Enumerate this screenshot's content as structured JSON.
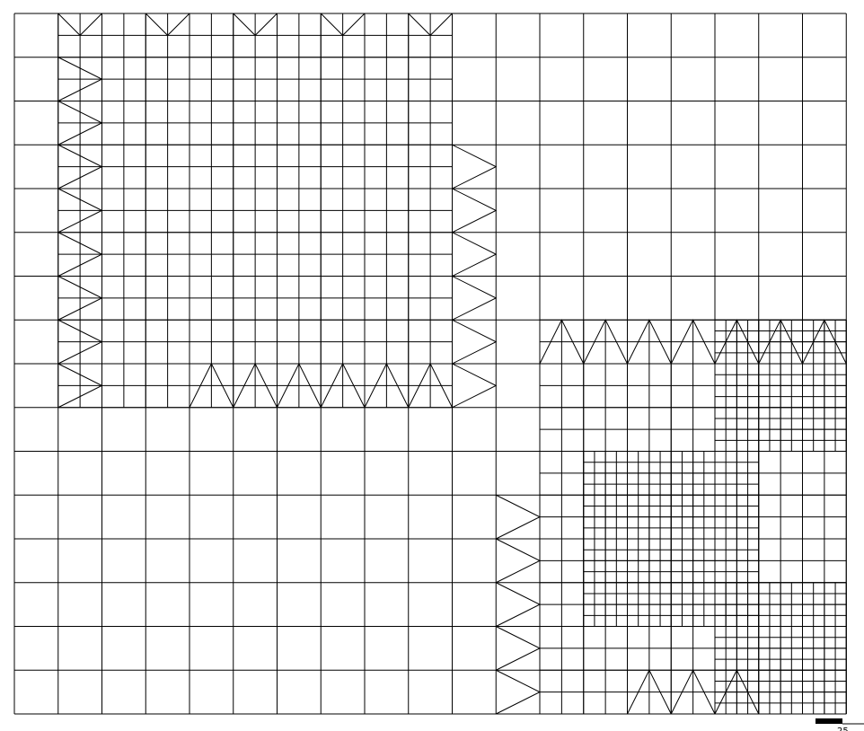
{
  "diagram": {
    "type": "adaptive-refined-mesh",
    "grid": {
      "columns": 19,
      "rows": 16
    },
    "colors": {
      "line": "#000000",
      "background": "#ffffff"
    },
    "refined_blocks": [
      {
        "name": "upper-left-region",
        "cols": [
          1,
          10
        ],
        "rows": [
          0,
          9
        ],
        "level": 2
      },
      {
        "name": "lower-right-diagonal",
        "cols": [
          12,
          19
        ],
        "rows": [
          7,
          16
        ],
        "level": 2
      },
      {
        "name": "fine-band-upper",
        "cols": [
          16,
          19
        ],
        "rows": [
          7,
          10
        ],
        "level": 3
      },
      {
        "name": "fine-band-middle",
        "cols": [
          13,
          17
        ],
        "rows": [
          10,
          14
        ],
        "level": 3
      },
      {
        "name": "fine-band-lower",
        "cols": [
          16,
          19
        ],
        "rows": [
          13,
          16
        ],
        "level": 3
      }
    ]
  },
  "scale_bar": {
    "label": "25"
  }
}
